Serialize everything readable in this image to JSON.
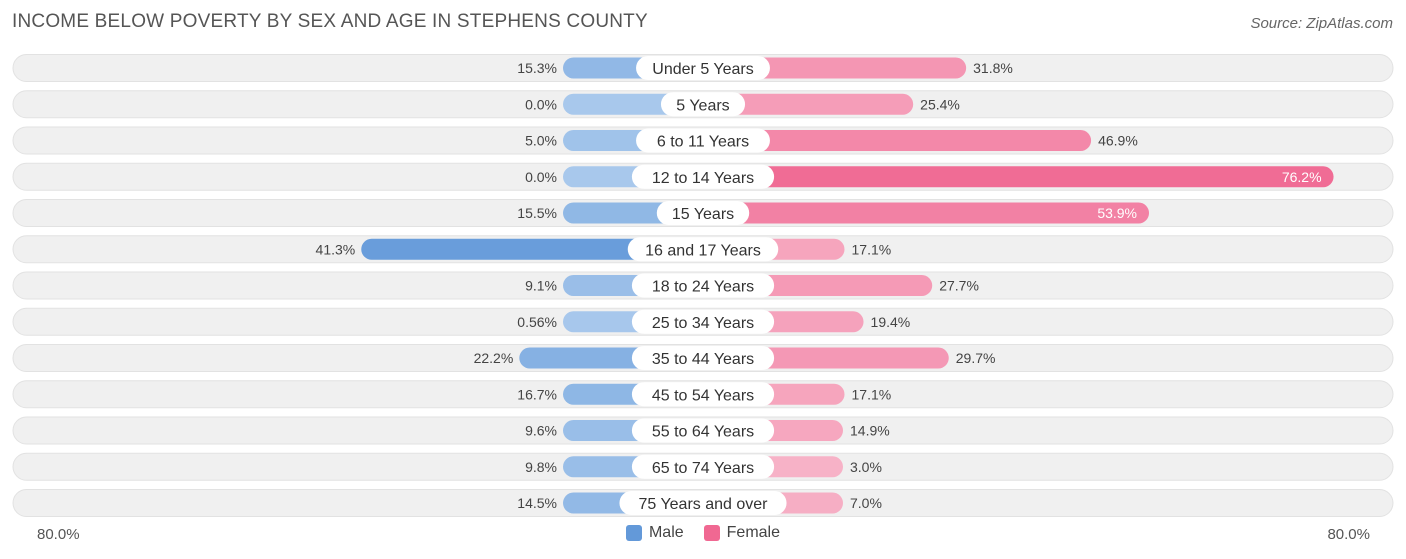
{
  "header": {
    "title": "INCOME BELOW POVERTY BY SEX AND AGE IN STEPHENS COUNTY",
    "source": "Source: ZipAtlas.com"
  },
  "colors": {
    "male_light": "#a8c8ec",
    "male_strong": "#6399d9",
    "female_light": "#f7b5c9",
    "female_strong": "#f06892",
    "track": "#f0f0f0"
  },
  "chart_data": {
    "type": "bar",
    "orientation": "horizontal-diverging",
    "title": "INCOME BELOW POVERTY BY SEX AND AGE IN STEPHENS COUNTY",
    "categories": [
      "Under 5 Years",
      "5 Years",
      "6 to 11 Years",
      "12 to 14 Years",
      "15 Years",
      "16 and 17 Years",
      "18 to 24 Years",
      "25 to 34 Years",
      "35 to 44 Years",
      "45 to 54 Years",
      "55 to 64 Years",
      "65 to 74 Years",
      "75 Years and over"
    ],
    "series": [
      {
        "name": "Male",
        "values": [
          15.3,
          0.0,
          5.0,
          0.0,
          15.5,
          41.3,
          9.1,
          0.56,
          22.2,
          16.7,
          9.6,
          9.8,
          14.5
        ],
        "labels": [
          "15.3%",
          "0.0%",
          "5.0%",
          "0.0%",
          "15.5%",
          "41.3%",
          "9.1%",
          "0.56%",
          "22.2%",
          "16.7%",
          "9.6%",
          "9.8%",
          "14.5%"
        ]
      },
      {
        "name": "Female",
        "values": [
          31.8,
          25.4,
          46.9,
          76.2,
          53.9,
          17.1,
          27.7,
          19.4,
          29.7,
          17.1,
          14.9,
          3.0,
          7.0
        ],
        "labels": [
          "31.8%",
          "25.4%",
          "46.9%",
          "76.2%",
          "53.9%",
          "17.1%",
          "27.7%",
          "19.4%",
          "29.7%",
          "17.1%",
          "14.9%",
          "3.0%",
          "7.0%"
        ]
      }
    ],
    "xlim": [
      -80,
      80
    ],
    "axis_min_label": "80.0%",
    "axis_max_label": "80.0%",
    "legend": {
      "position": "bottom-center",
      "male": "Male",
      "female": "Female"
    }
  }
}
